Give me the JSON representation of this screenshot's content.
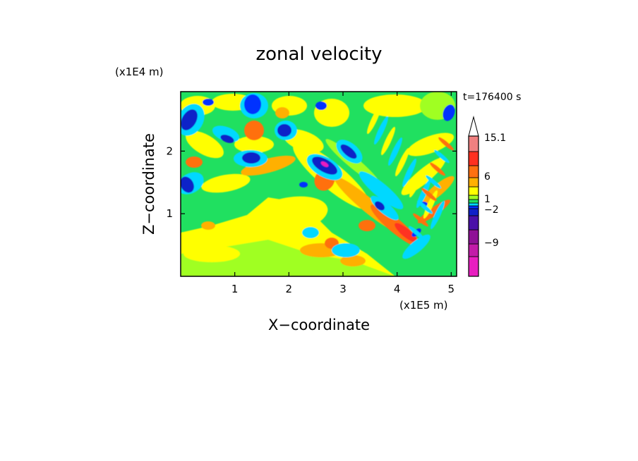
{
  "chart_data": {
    "type": "heatmap",
    "title": "zonal velocity",
    "xlabel": "X−coordinate",
    "ylabel": "Z−coordinate",
    "x_unit": "(x1E5 m)",
    "y_unit": "(x1E4 m)",
    "time_label": "t=176400 s",
    "xlim": [
      0,
      5.1
    ],
    "ylim": [
      0,
      2.95
    ],
    "x_ticks": [
      "1",
      "2",
      "3",
      "4",
      "5"
    ],
    "x_tick_values": [
      1,
      2,
      3,
      4,
      5
    ],
    "y_ticks": [
      "1",
      "2"
    ],
    "y_tick_values": [
      1,
      2
    ],
    "colorbar": {
      "levels": [
        -13,
        -11,
        -9,
        -7,
        -5,
        -2,
        -1,
        0,
        1,
        2,
        3,
        6,
        9,
        12,
        15.1
      ],
      "colors": [
        "#e81ec0",
        "#c21ba8",
        "#8f1196",
        "#4a10a8",
        "#1020c8",
        "#0030ff",
        "#00d8ff",
        "#20e060",
        "#a0ff20",
        "#ffff00",
        "#ffb000",
        "#ff7010",
        "#ff3020",
        "#f08080",
        "#ffc8c8"
      ],
      "labels": [
        "15.1",
        "6",
        "1",
        "−2",
        "−9"
      ],
      "label_values": [
        15.1,
        6,
        1,
        -2,
        -9
      ],
      "extend": "max"
    },
    "grid": false
  }
}
